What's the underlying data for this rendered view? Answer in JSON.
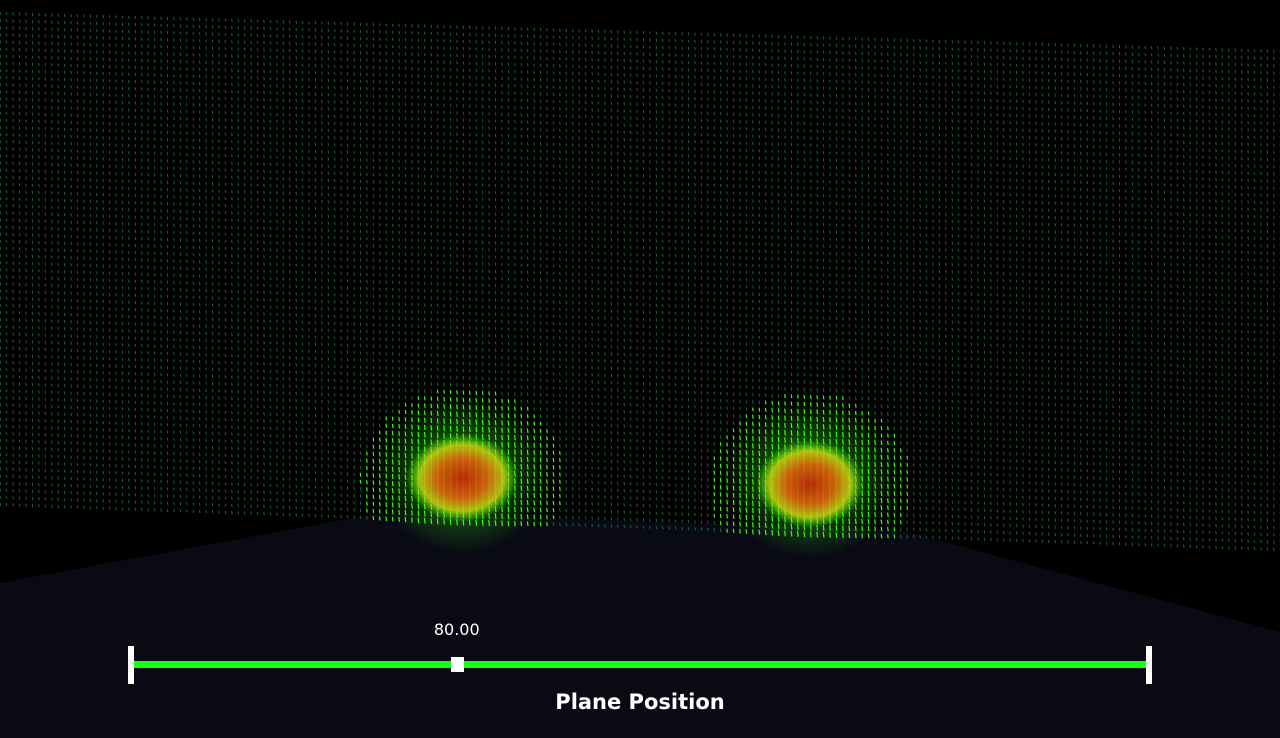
{
  "scene": {
    "description_colors": {
      "background": "#000000",
      "ground": "#090a14",
      "low_velocity": "#1f8a55",
      "mid_velocity": "#39ff14",
      "high_velocity": "#e03010"
    },
    "glyph_field_name": "velocity-vector-glyphs"
  },
  "slider": {
    "value": "80.00",
    "title": "Plane Position",
    "value_fraction": 0.32,
    "track_color": "#14ff14",
    "handle_color": "#ffffff"
  }
}
